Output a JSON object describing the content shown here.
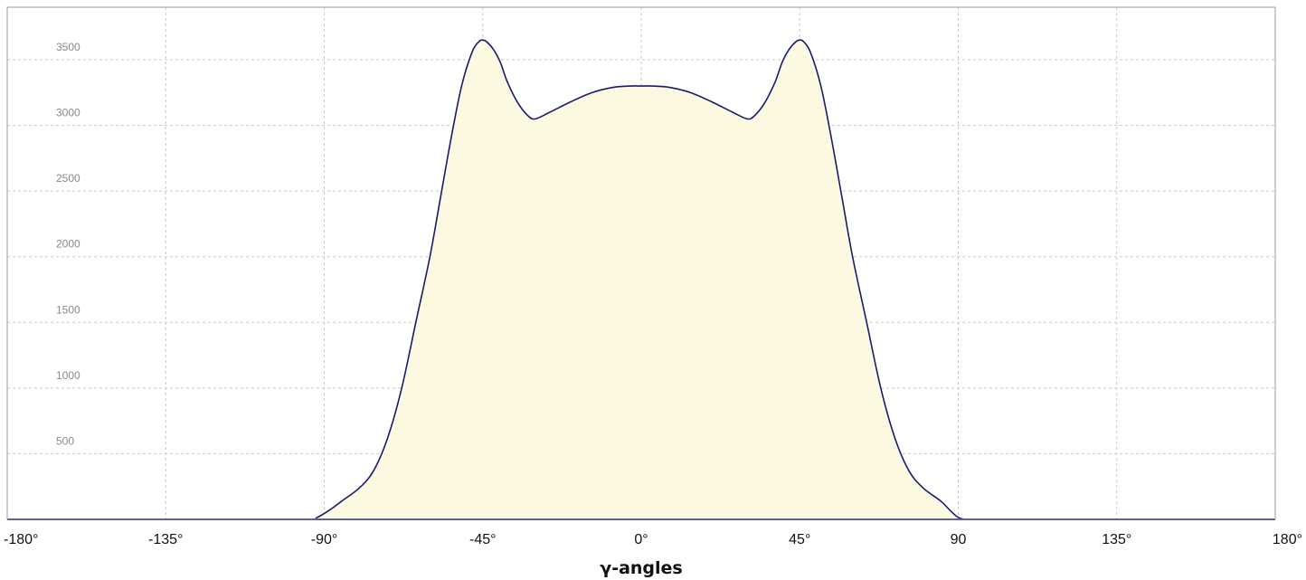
{
  "chart_data": {
    "type": "area",
    "title": "",
    "xlabel": "γ-angles",
    "ylabel": "",
    "xlim": [
      -180,
      180
    ],
    "ylim": [
      0,
      3900
    ],
    "grid": true,
    "x_ticks": [
      {
        "value": -180,
        "label": "-180°"
      },
      {
        "value": -135,
        "label": "-135°"
      },
      {
        "value": -90,
        "label": "-90°"
      },
      {
        "value": -45,
        "label": "-45°"
      },
      {
        "value": 0,
        "label": "0°"
      },
      {
        "value": 45,
        "label": "45°"
      },
      {
        "value": 90,
        "label": "90"
      },
      {
        "value": 135,
        "label": "135°"
      },
      {
        "value": 180,
        "label": "180°"
      }
    ],
    "y_ticks": [
      {
        "value": 500,
        "label": "500"
      },
      {
        "value": 1000,
        "label": "1000"
      },
      {
        "value": 1500,
        "label": "1500"
      },
      {
        "value": 2000,
        "label": "2000"
      },
      {
        "value": 2500,
        "label": "2500"
      },
      {
        "value": 3000,
        "label": "3000"
      },
      {
        "value": 3500,
        "label": "3500"
      }
    ],
    "colors": {
      "line": "#1a1a6e",
      "fill": "#fcf9e1",
      "baseline": "#2a2a8a"
    },
    "series": [
      {
        "x": [
          -180,
          -120,
          -95,
          -92,
          -88,
          -85,
          -80,
          -76,
          -72,
          -68,
          -64,
          -60,
          -57,
          -54,
          -51,
          -48,
          -46,
          -45,
          -44,
          -42,
          -40,
          -38,
          -35,
          -32,
          -30,
          -26,
          -20,
          -14,
          -8,
          -3,
          0,
          3,
          8,
          14,
          20,
          26,
          30,
          32,
          35,
          38,
          40,
          42,
          44,
          45,
          46,
          48,
          51,
          54,
          57,
          60,
          64,
          68,
          72,
          76,
          80,
          85,
          88,
          90,
          92,
          95,
          120,
          180
        ],
        "y": [
          0,
          0,
          0,
          15,
          80,
          140,
          240,
          370,
          620,
          1000,
          1500,
          2000,
          2450,
          2900,
          3300,
          3560,
          3640,
          3650,
          3640,
          3580,
          3480,
          3330,
          3170,
          3070,
          3050,
          3100,
          3180,
          3250,
          3290,
          3300,
          3300,
          3300,
          3290,
          3250,
          3180,
          3100,
          3050,
          3070,
          3170,
          3330,
          3480,
          3580,
          3640,
          3650,
          3640,
          3560,
          3300,
          2900,
          2450,
          2000,
          1500,
          1000,
          620,
          370,
          240,
          140,
          60,
          15,
          0,
          0,
          0,
          0
        ]
      }
    ]
  }
}
